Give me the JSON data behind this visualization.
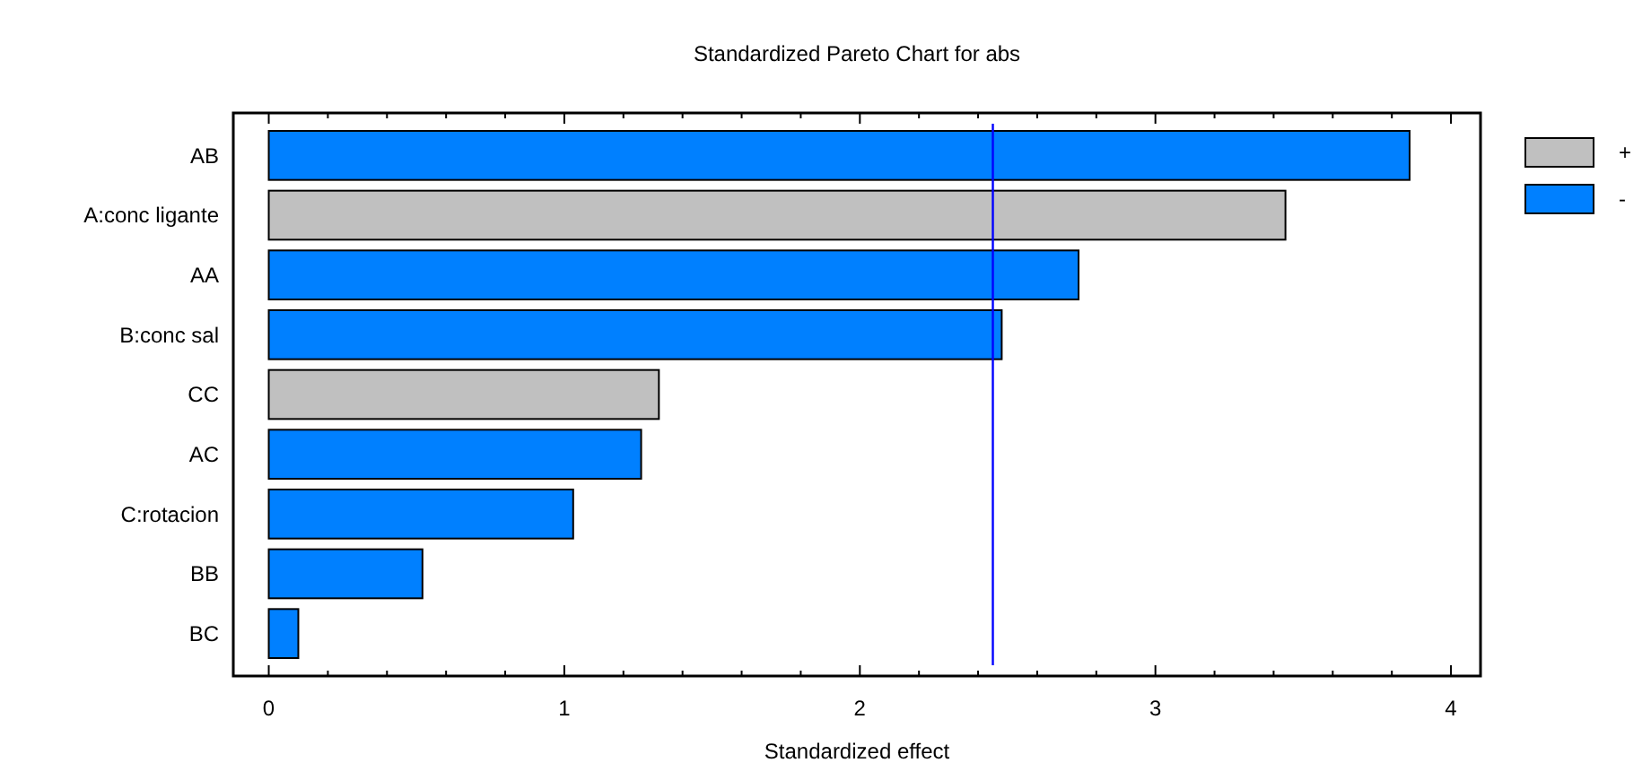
{
  "chart_data": {
    "type": "bar",
    "orientation": "horizontal",
    "title": "Standardized Pareto Chart for abs",
    "xlabel": "Standardized effect",
    "categories": [
      "AB",
      "A:conc ligante",
      "AA",
      "B:conc sal",
      "CC",
      "AC",
      "C:rotacion",
      "BB",
      "BC"
    ],
    "series": [
      {
        "name": "+",
        "color": "#c0c0c0",
        "values": [
          null,
          3.44,
          null,
          null,
          1.32,
          null,
          null,
          null,
          null
        ]
      },
      {
        "name": "-",
        "color": "#0080ff",
        "values": [
          3.86,
          null,
          2.74,
          2.48,
          null,
          1.26,
          1.03,
          0.52,
          0.1
        ]
      }
    ],
    "xlim": [
      -0.12,
      4.1
    ],
    "xticks": [
      0,
      {
        "value": 0.2,
        "label": null
      },
      {
        "value": 0.4,
        "label": null
      },
      {
        "value": 0.6,
        "label": null
      },
      {
        "value": 0.8,
        "label": null
      },
      1,
      {
        "value": 1.2,
        "label": null
      },
      {
        "value": 1.4,
        "label": null
      },
      {
        "value": 1.6,
        "label": null
      },
      {
        "value": 1.8,
        "label": null
      },
      2,
      {
        "value": 2.2,
        "label": null
      },
      {
        "value": 2.4,
        "label": null
      },
      {
        "value": 2.6,
        "label": null
      },
      {
        "value": 2.8,
        "label": null
      },
      3,
      {
        "value": 3.2,
        "label": null
      },
      {
        "value": 3.4,
        "label": null
      },
      {
        "value": 3.6,
        "label": null
      },
      {
        "value": 3.8,
        "label": null
      },
      4
    ],
    "ref_lines": [
      {
        "axis": "x",
        "value": 2.45,
        "color": "#0000ff"
      }
    ],
    "legend": "right",
    "grid": false
  }
}
